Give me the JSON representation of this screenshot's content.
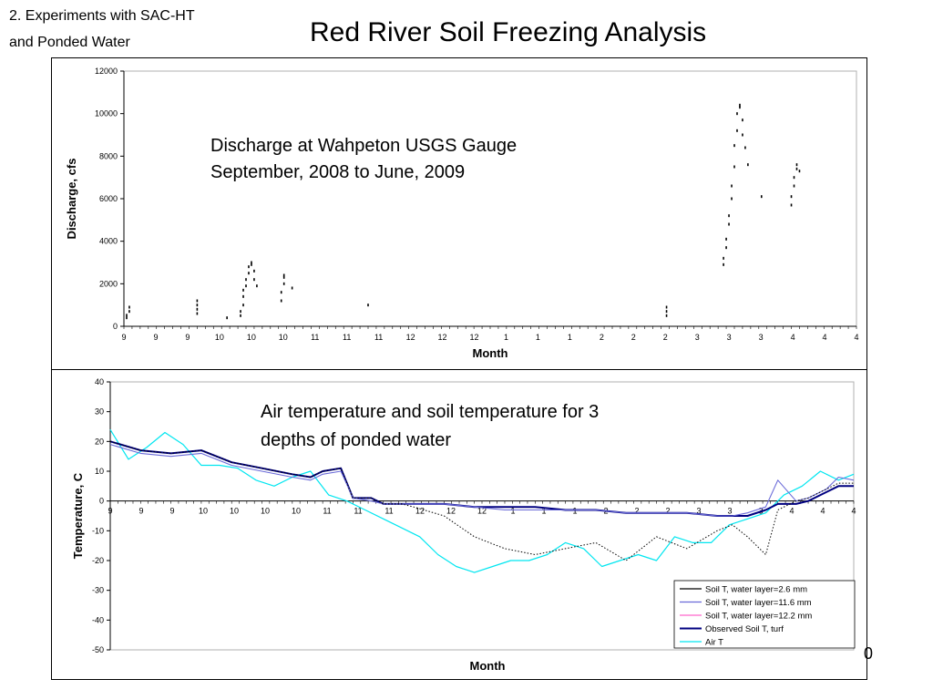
{
  "header": {
    "section_line1": "2. Experiments with SAC-HT",
    "section_line2": "and Ponded Water",
    "title": "Red River Soil Freezing Analysis",
    "page_number": "0"
  },
  "chart_data": [
    {
      "type": "scatter",
      "annotation_line1": "Discharge at Wahpeton USGS Gauge",
      "annotation_line2": "September, 2008 to June, 2009",
      "xlabel": "Month",
      "ylabel": "Discharge, cfs",
      "ylim": [
        0,
        12000
      ],
      "yticks": [
        0,
        2000,
        4000,
        6000,
        8000,
        10000,
        12000
      ],
      "xtick_labels": [
        "9",
        "9",
        "9",
        "10",
        "10",
        "10",
        "11",
        "11",
        "11",
        "12",
        "12",
        "12",
        "1",
        "1",
        "1",
        "2",
        "2",
        "2",
        "3",
        "3",
        "3",
        "4",
        "4",
        "4"
      ],
      "xlim": [
        0,
        270
      ],
      "series": [
        {
          "points": [
            [
              1,
              400
            ],
            [
              1,
              520
            ],
            [
              2,
              700
            ],
            [
              2,
              900
            ],
            [
              27,
              600
            ],
            [
              27,
              800
            ],
            [
              27,
              1000
            ],
            [
              27,
              1200
            ],
            [
              38,
              400
            ],
            [
              43,
              500
            ],
            [
              43,
              700
            ],
            [
              44,
              1000
            ],
            [
              44,
              1400
            ],
            [
              44,
              1700
            ],
            [
              45,
              1900
            ],
            [
              45,
              2200
            ],
            [
              46,
              2500
            ],
            [
              46,
              2800
            ],
            [
              47,
              2900
            ],
            [
              47,
              3000
            ],
            [
              48,
              2600
            ],
            [
              48,
              2200
            ],
            [
              49,
              1900
            ],
            [
              58,
              1200
            ],
            [
              58,
              1600
            ],
            [
              59,
              2000
            ],
            [
              59,
              2300
            ],
            [
              59,
              2400
            ],
            [
              62,
              1800
            ],
            [
              90,
              1000
            ],
            [
              200,
              500
            ],
            [
              200,
              700
            ],
            [
              200,
              900
            ],
            [
              221,
              2900
            ],
            [
              221,
              3200
            ],
            [
              222,
              3700
            ],
            [
              222,
              4100
            ],
            [
              223,
              4800
            ],
            [
              223,
              5200
            ],
            [
              224,
              6000
            ],
            [
              224,
              6600
            ],
            [
              225,
              7500
            ],
            [
              225,
              8500
            ],
            [
              226,
              9200
            ],
            [
              226,
              10000
            ],
            [
              227,
              10300
            ],
            [
              227,
              10400
            ],
            [
              228,
              9700
            ],
            [
              228,
              9000
            ],
            [
              229,
              8400
            ],
            [
              230,
              7600
            ],
            [
              235,
              6100
            ],
            [
              246,
              5700
            ],
            [
              246,
              6100
            ],
            [
              247,
              6600
            ],
            [
              247,
              7000
            ],
            [
              248,
              7400
            ],
            [
              248,
              7600
            ],
            [
              249,
              7300
            ]
          ]
        }
      ]
    },
    {
      "type": "line",
      "annotation_line1": "Air temperature and soil temperature for 3",
      "annotation_line2": "depths of ponded water",
      "xlabel": "Month",
      "ylabel": "Temperature, C",
      "ylim": [
        -50,
        40
      ],
      "yticks": [
        -50,
        -40,
        -30,
        -20,
        -10,
        0,
        10,
        20,
        30,
        40
      ],
      "xtick_labels": [
        "9",
        "9",
        "9",
        "10",
        "10",
        "10",
        "10",
        "11",
        "11",
        "11",
        "12",
        "12",
        "12",
        "1",
        "1",
        "1",
        "2",
        "2",
        "2",
        "3",
        "3",
        "3",
        "4",
        "4",
        "4"
      ],
      "xlim": [
        0,
        245
      ],
      "legend": [
        {
          "name": "Soil T, water layer=2.6 mm",
          "color": "#000000"
        },
        {
          "name": "Soil T, water layer=11.6 mm",
          "color": "#6a6ad8"
        },
        {
          "name": "Soil T, water layer=12.2 mm",
          "color": "#ff66cc"
        },
        {
          "name": "Observed Soil T, turf",
          "color": "#000080"
        },
        {
          "name": "Air T",
          "color": "#00e6f0"
        }
      ],
      "series": [
        {
          "name": "Air T",
          "x": [
            0,
            6,
            12,
            18,
            24,
            30,
            36,
            42,
            48,
            54,
            60,
            66,
            72,
            78,
            84,
            90,
            96,
            102,
            108,
            114,
            120,
            126,
            132,
            138,
            144,
            150,
            156,
            162,
            168,
            174,
            180,
            186,
            192,
            198,
            204,
            210,
            216,
            222,
            228,
            234,
            240,
            245
          ],
          "y": [
            24,
            14,
            18,
            23,
            19,
            12,
            12,
            11,
            7,
            5,
            8,
            10,
            2,
            0,
            -3,
            -6,
            -9,
            -12,
            -18,
            -22,
            -24,
            -22,
            -20,
            -20,
            -18,
            -14,
            -16,
            -22,
            -20,
            -18,
            -20,
            -12,
            -14,
            -14,
            -8,
            -6,
            -4,
            2,
            5,
            10,
            7,
            9
          ]
        },
        {
          "name": "Observed Soil T, turf",
          "x": [
            0,
            10,
            20,
            30,
            40,
            50,
            60,
            66,
            70,
            76,
            80,
            86,
            90,
            96,
            100,
            110,
            120,
            130,
            140,
            150,
            160,
            170,
            180,
            190,
            200,
            205,
            210,
            216,
            220,
            226,
            230,
            236,
            240,
            245
          ],
          "y": [
            20,
            17,
            16,
            17,
            13,
            11,
            9,
            8,
            10,
            11,
            1,
            1,
            -1,
            -1,
            -1,
            -1,
            -2,
            -2,
            -2,
            -3,
            -3,
            -4,
            -4,
            -4,
            -5,
            -5,
            -5,
            -3,
            -1,
            -1,
            0,
            3,
            5,
            5
          ]
        },
        {
          "name": "Soil T, water layer=11.6 mm",
          "x": [
            0,
            10,
            20,
            30,
            40,
            50,
            60,
            66,
            70,
            76,
            80,
            86,
            90,
            96,
            100,
            110,
            120,
            130,
            140,
            150,
            160,
            170,
            180,
            190,
            200,
            205,
            210,
            216,
            220,
            226,
            230,
            236,
            240,
            245
          ],
          "y": [
            19,
            16,
            15,
            16,
            12,
            10,
            8,
            7,
            9,
            10,
            1,
            0,
            -1,
            -1,
            -1,
            -1,
            -2,
            -3,
            -3,
            -3,
            -3,
            -4,
            -4,
            -4,
            -5,
            -5,
            -4,
            -2,
            7,
            0,
            1,
            4,
            8,
            7
          ]
        },
        {
          "name": "Soil T, water layer=2.6 mm",
          "x": [
            0,
            10,
            20,
            30,
            40,
            50,
            60,
            66,
            70,
            76,
            80,
            86,
            90,
            96,
            100,
            110,
            120,
            130,
            140,
            150,
            160,
            170,
            180,
            190,
            200,
            205,
            210,
            216,
            220,
            226,
            230,
            236,
            240,
            245
          ],
          "y": [
            20,
            17,
            16,
            17,
            13,
            11,
            9,
            8,
            10,
            11,
            1,
            1,
            -1,
            -1,
            -2,
            -5,
            -12,
            -16,
            -18,
            -16,
            -14,
            -20,
            -12,
            -16,
            -10,
            -8,
            -12,
            -18,
            -3,
            0,
            1,
            4,
            6,
            6
          ]
        }
      ]
    }
  ]
}
